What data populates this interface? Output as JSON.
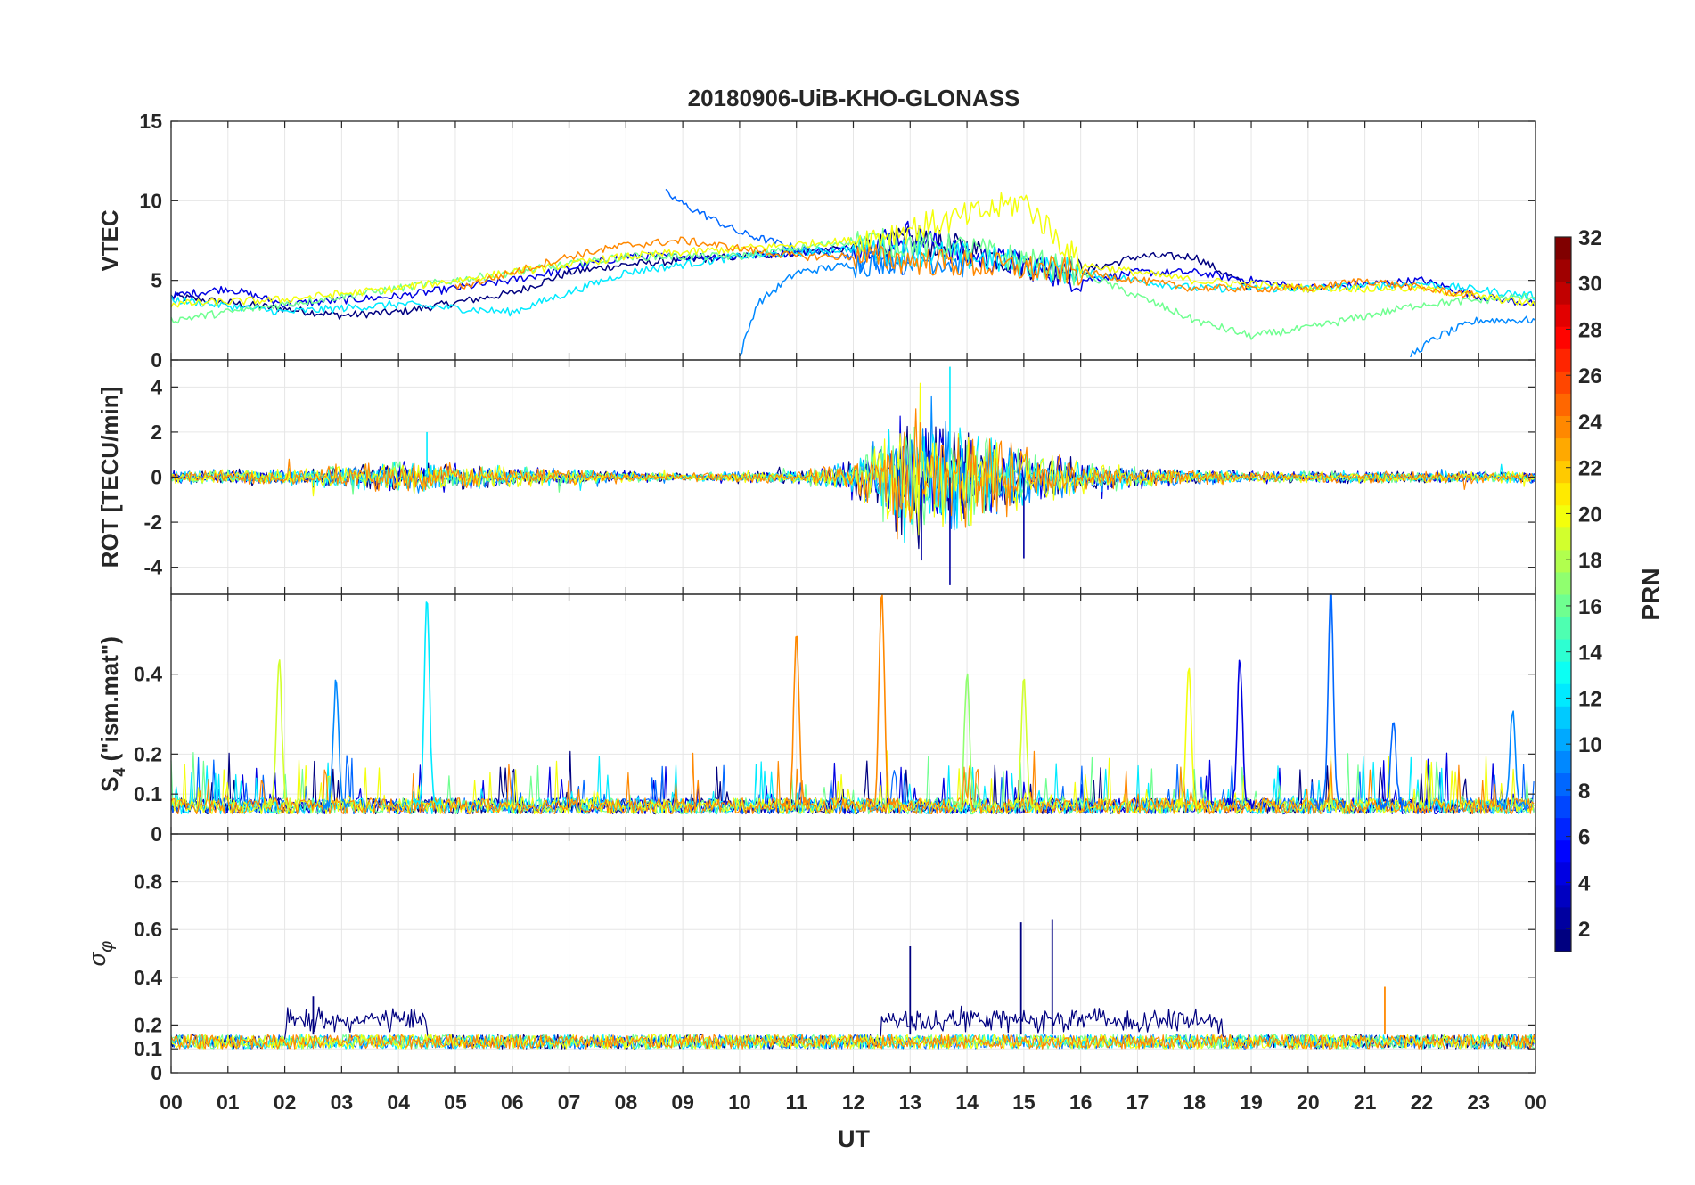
{
  "title": "20180906-UiB-KHO-GLONASS",
  "colors": {
    "colormap": "jet",
    "grid": "#e6e6e6",
    "axes": "#262626"
  },
  "chart_data": [
    {
      "type": "line",
      "panel": "VTEC",
      "title": "20180906-UiB-KHO-GLONASS",
      "ylabel": "VTEC",
      "xlabel": "",
      "ylim": [
        0,
        15
      ],
      "yticks": [
        "0",
        "5",
        "10",
        "15"
      ],
      "x_unit": "UT hour",
      "xlim": [
        0,
        24
      ],
      "grid": true,
      "series": [
        {
          "prn": 1,
          "x": [
            0,
            2,
            3,
            4,
            6,
            7,
            8,
            10,
            12,
            13,
            14,
            15,
            16,
            17,
            18,
            19
          ],
          "values": [
            4.0,
            3.2,
            2.8,
            3.0,
            4.2,
            5.5,
            6.0,
            6.5,
            7.0,
            7.5,
            7.0,
            6.0,
            5.5,
            6.5,
            6.5,
            4.5
          ]
        },
        {
          "prn": 4,
          "x": [
            0,
            1,
            2,
            4,
            6,
            8,
            10,
            12,
            13,
            14,
            15,
            16,
            17,
            18,
            20,
            22,
            23,
            24
          ],
          "values": [
            4.0,
            4.5,
            3.5,
            4.0,
            5.0,
            6.5,
            6.5,
            7.0,
            8.0,
            6.5,
            6.0,
            5.0,
            5.5,
            5.5,
            4.5,
            5.0,
            4.0,
            3.5
          ]
        },
        {
          "prn": 8,
          "x": [
            8.7,
            9,
            10,
            11,
            12,
            13
          ],
          "values": [
            10.5,
            9.8,
            8.0,
            7.0,
            6.5,
            6.0
          ]
        },
        {
          "prn": 9,
          "x": [
            10,
            10.3,
            11,
            12,
            13,
            14
          ],
          "values": [
            0.2,
            3.5,
            5.5,
            6.0,
            6.5,
            6.0
          ]
        },
        {
          "prn": 9,
          "x": [
            21.8,
            22.3,
            23,
            24
          ],
          "values": [
            0.3,
            1.5,
            2.5,
            2.5
          ]
        },
        {
          "prn": 12,
          "x": [
            0,
            2,
            4,
            6,
            8,
            10,
            12,
            14,
            16,
            18,
            20,
            22,
            24
          ],
          "values": [
            3.8,
            3.0,
            3.5,
            3.0,
            5.5,
            6.5,
            7.0,
            6.5,
            5.5,
            4.5,
            4.5,
            4.8,
            4.0
          ]
        },
        {
          "prn": 16,
          "x": [
            0,
            2,
            4,
            6,
            8,
            10,
            12,
            14,
            16,
            18,
            19,
            20,
            22,
            24
          ],
          "values": [
            2.5,
            3.5,
            4.5,
            5.5,
            6.5,
            6.5,
            7.5,
            7.0,
            5.5,
            2.5,
            1.5,
            2.0,
            3.5,
            4.0
          ]
        },
        {
          "prn": 20,
          "x": [
            0,
            2,
            4,
            6,
            8,
            10,
            12,
            14,
            15,
            16,
            18,
            20,
            22,
            24
          ],
          "values": [
            3.5,
            3.8,
            4.5,
            5.5,
            6.5,
            7.0,
            7.5,
            9.0,
            10.0,
            6.0,
            5.0,
            4.5,
            4.5,
            3.5
          ]
        },
        {
          "prn": 24,
          "x": [
            5,
            6,
            7,
            8,
            9,
            10,
            11,
            12,
            14,
            16,
            18,
            20,
            21,
            22,
            23
          ],
          "values": [
            4.5,
            5.5,
            6.5,
            7.2,
            7.5,
            7.0,
            6.5,
            6.5,
            6.0,
            5.5,
            4.5,
            4.5,
            5.0,
            4.5,
            4.0
          ]
        }
      ]
    },
    {
      "type": "line",
      "panel": "ROT",
      "ylabel": "ROT [TECU/min]",
      "ylim": [
        -5.2,
        5.2
      ],
      "yticks": [
        "-4",
        "-2",
        "0",
        "2",
        "4"
      ],
      "xlim": [
        0,
        24
      ],
      "grid": true,
      "noise_envelope_max_abs": [
        0.3,
        0.4,
        0.4,
        0.6,
        0.8,
        0.7,
        0.5,
        0.4,
        0.3,
        0.2,
        0.3,
        0.3,
        0.8,
        3.5,
        2.5,
        1.5,
        0.8,
        0.5,
        0.4,
        0.3,
        0.3,
        0.3,
        0.3,
        0.3,
        0.3
      ],
      "notable_extremes": [
        {
          "x": 13.7,
          "y": 4.9
        },
        {
          "x": 13.7,
          "y": -4.8
        },
        {
          "x": 13.2,
          "y": -3.7
        },
        {
          "x": 15.0,
          "y": -3.6
        },
        {
          "x": 4.5,
          "y": 2.0
        }
      ]
    },
    {
      "type": "line",
      "panel": "S4",
      "ylabel": "S4 (\"ism.mat\")",
      "ylim": [
        0,
        0.6
      ],
      "yticks": [
        "0",
        "0.1",
        "0.2",
        "0.4"
      ],
      "xlim": [
        0,
        24
      ],
      "grid": true,
      "baseline": 0.06,
      "peaks": [
        {
          "x": 1.9,
          "y": 0.43,
          "prn": 19
        },
        {
          "x": 2.9,
          "y": 0.37,
          "prn": 9
        },
        {
          "x": 4.5,
          "y": 0.58,
          "prn": 12
        },
        {
          "x": 11.0,
          "y": 0.49,
          "prn": 24
        },
        {
          "x": 12.5,
          "y": 0.6,
          "prn": 24
        },
        {
          "x": 14.0,
          "y": 0.38,
          "prn": 17
        },
        {
          "x": 15.0,
          "y": 0.37,
          "prn": 19
        },
        {
          "x": 17.9,
          "y": 0.4,
          "prn": 20
        },
        {
          "x": 18.8,
          "y": 0.42,
          "prn": 4
        },
        {
          "x": 20.4,
          "y": 0.6,
          "prn": 8
        },
        {
          "x": 21.5,
          "y": 0.28,
          "prn": 8
        },
        {
          "x": 23.6,
          "y": 0.3,
          "prn": 9
        }
      ]
    },
    {
      "type": "line",
      "panel": "sigma_phi",
      "ylabel": "σφ",
      "ylim": [
        0,
        1.0
      ],
      "yticks": [
        "0",
        "0.1",
        "0.2",
        "0.4",
        "0.6",
        "0.8"
      ],
      "xlabel": "UT",
      "xticks": [
        "00",
        "01",
        "02",
        "03",
        "04",
        "05",
        "06",
        "07",
        "08",
        "09",
        "10",
        "11",
        "12",
        "13",
        "14",
        "15",
        "16",
        "17",
        "18",
        "19",
        "20",
        "21",
        "22",
        "23",
        "00"
      ],
      "xlim": [
        0,
        24
      ],
      "grid": true,
      "baseline": 0.12,
      "peaks": [
        {
          "x": 13.0,
          "y": 0.53,
          "prn": 1
        },
        {
          "x": 14.95,
          "y": 0.63,
          "prn": 1
        },
        {
          "x": 15.5,
          "y": 0.64,
          "prn": 1
        },
        {
          "x": 21.35,
          "y": 0.36,
          "prn": 24
        },
        {
          "x": 2.5,
          "y": 0.32,
          "prn": 1
        }
      ]
    }
  ],
  "colorbar": {
    "label": "PRN",
    "ticks": [
      "2",
      "4",
      "6",
      "8",
      "10",
      "12",
      "14",
      "16",
      "18",
      "20",
      "22",
      "24",
      "26",
      "28",
      "30",
      "32"
    ],
    "range": [
      1,
      32
    ],
    "levels": 32
  }
}
